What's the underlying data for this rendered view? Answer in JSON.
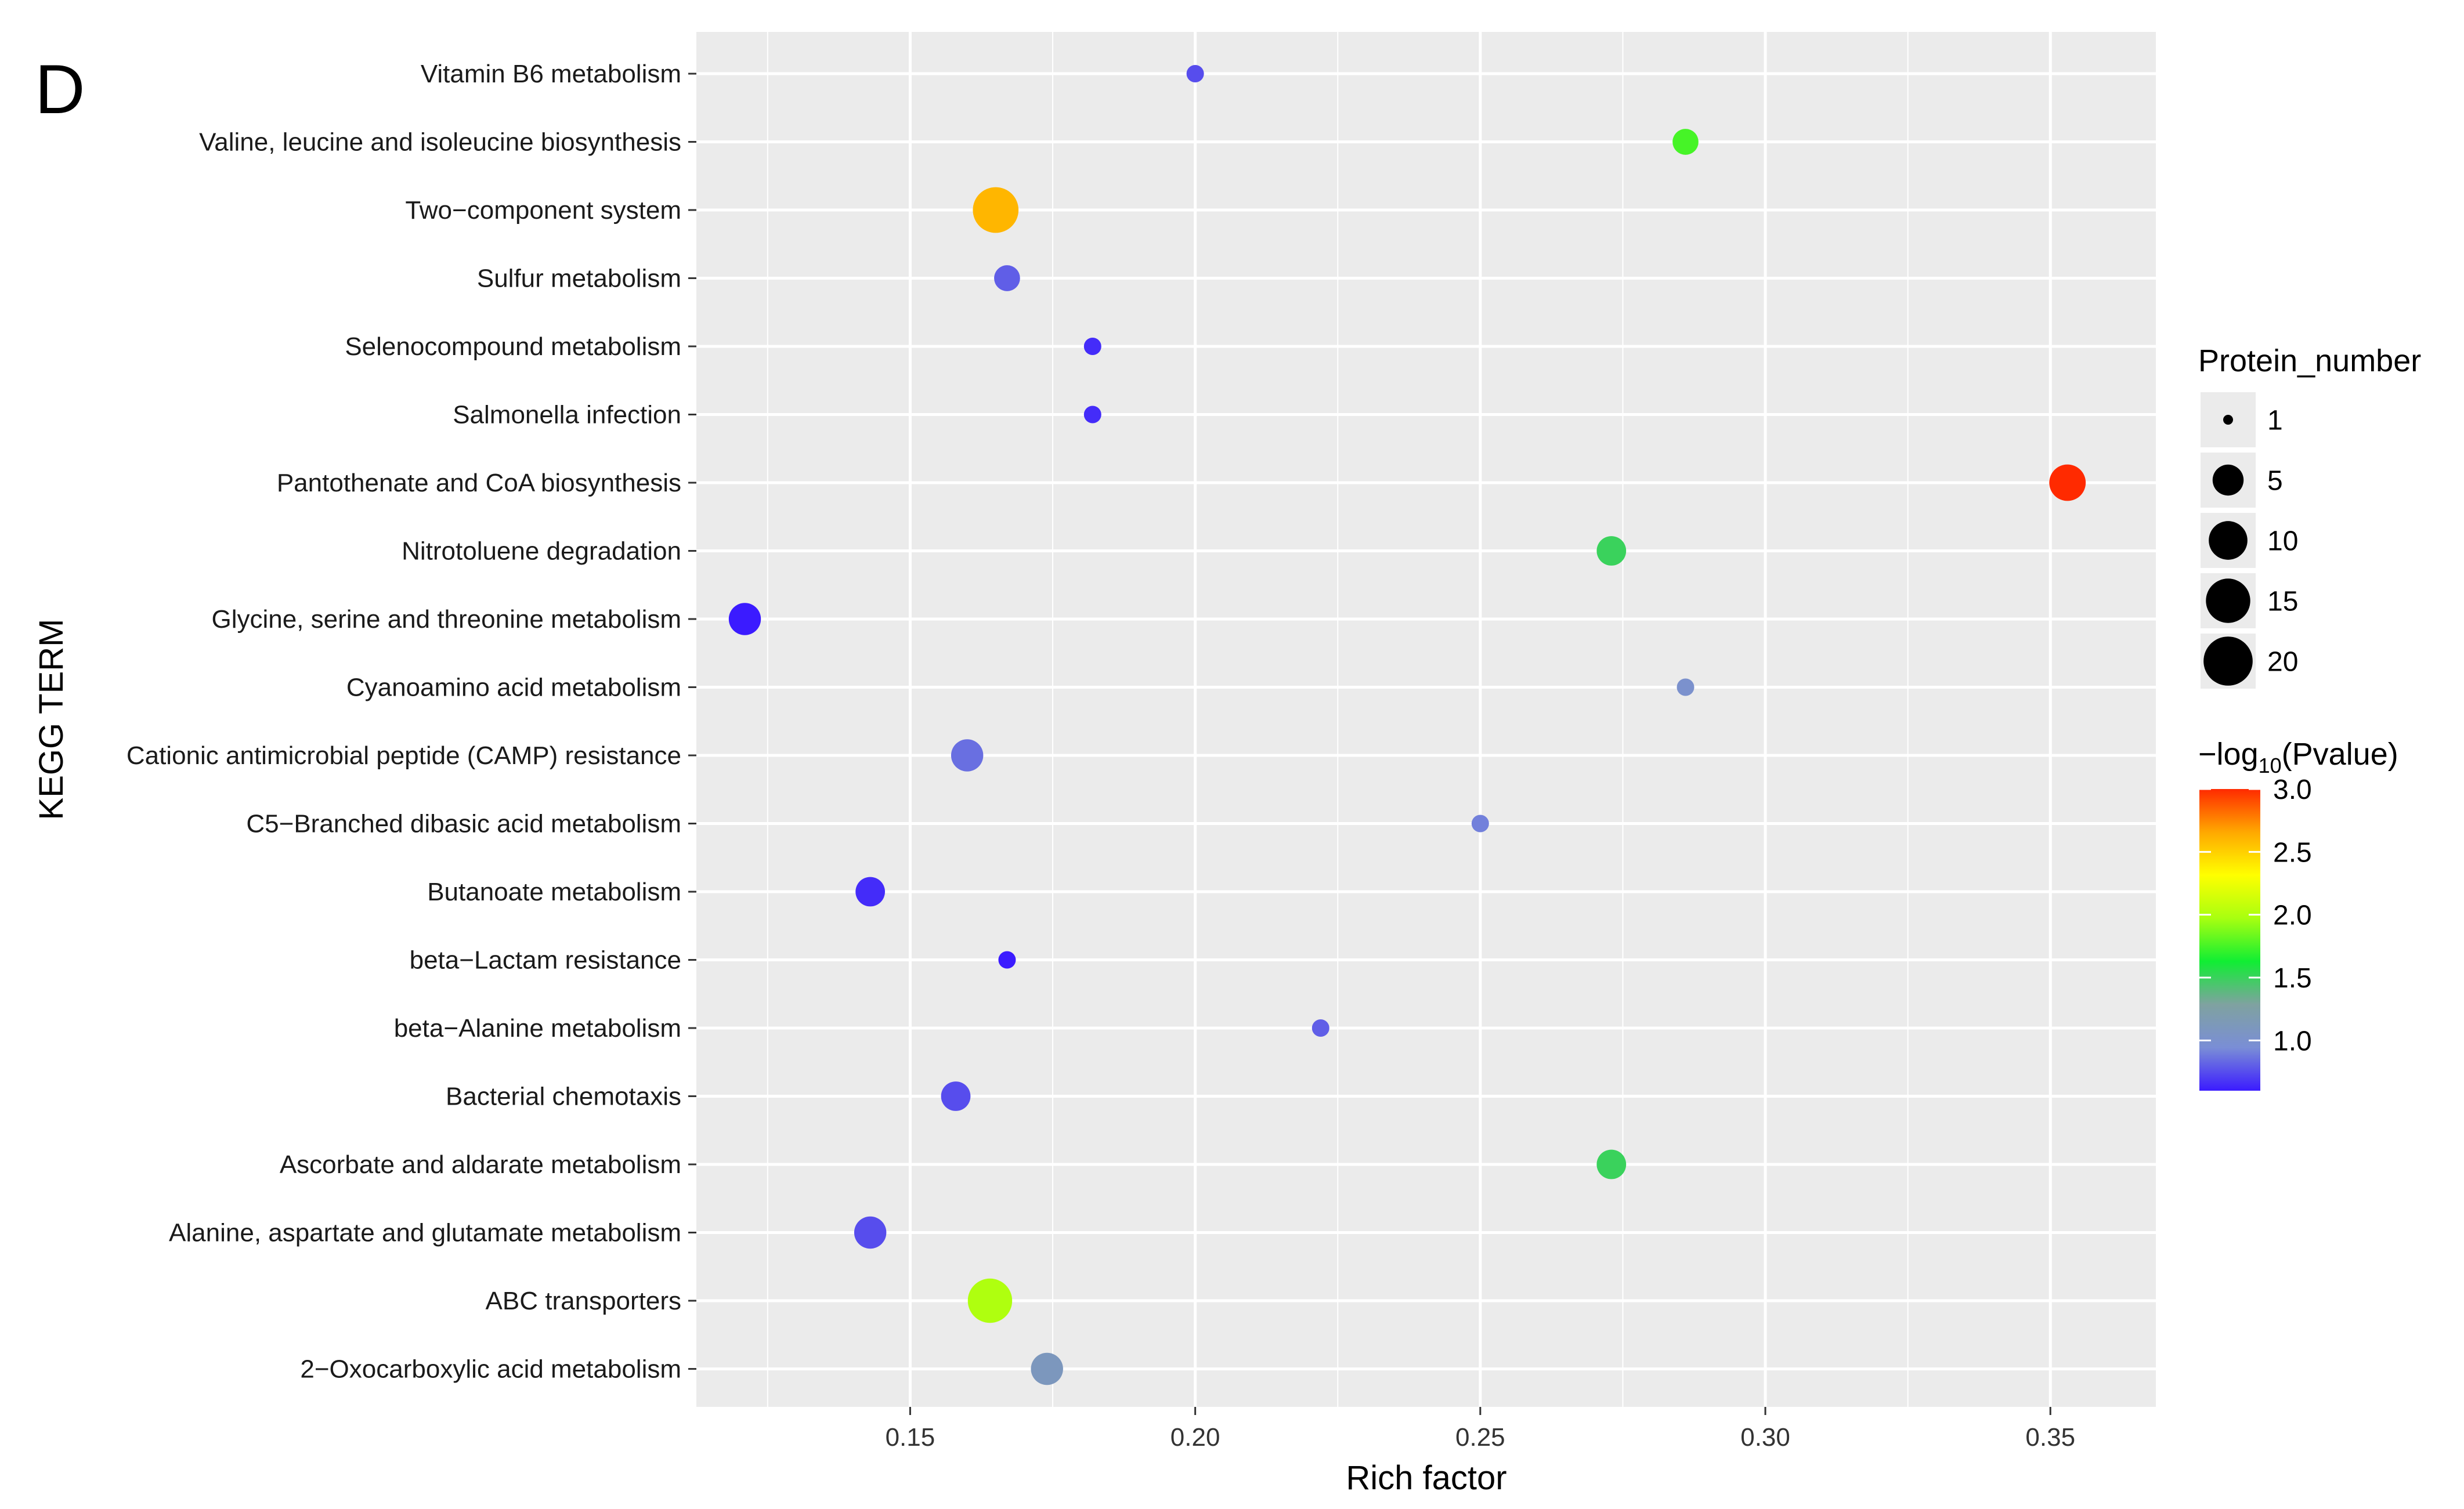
{
  "panel_label": "D",
  "colors": {
    "panel_bg": "#ebebeb",
    "grid": "#ffffff",
    "legend_key_bg": "#ebebeb",
    "gradient_stops": [
      "#3b1bff",
      "#7a8ed6",
      "#7fa2a0",
      "#10ee33",
      "#a8ff10",
      "#ffff00",
      "#ffa800",
      "#ff2a00"
    ]
  },
  "chart_data": {
    "type": "scatter",
    "subtype": "bubble",
    "xlabel": "Rich factor",
    "ylabel": "KEGG TERM",
    "xlim": [
      0.1125,
      0.3685
    ],
    "xticks": [
      0.15,
      0.2,
      0.25,
      0.3,
      0.35
    ],
    "xtick_labels": [
      "0.15",
      "0.20",
      "0.25",
      "0.30",
      "0.35"
    ],
    "grid": true,
    "size_legend": {
      "title": "Protein_number",
      "values": [
        1,
        5,
        10,
        15,
        20
      ],
      "labels": [
        "1",
        "5",
        "10",
        "15",
        "20"
      ]
    },
    "color_legend": {
      "title_prefix": "−log",
      "title_subscript": "10",
      "title_suffix": "(Pvalue)",
      "range": [
        0.6,
        3.0
      ],
      "ticks": [
        1.0,
        1.5,
        2.0,
        2.5,
        3.0
      ],
      "tick_labels": [
        "1.0",
        "1.5",
        "2.0",
        "2.5",
        "3.0"
      ]
    },
    "points": [
      {
        "term": "Vitamin B6 metabolism",
        "rich_factor": 0.2,
        "protein_number": 1,
        "neg_log10_p": 0.75
      },
      {
        "term": "Valine, leucine and isoleucine biosynthesis",
        "rich_factor": 0.286,
        "protein_number": 2,
        "neg_log10_p": 1.75
      },
      {
        "term": "Two−component system",
        "rich_factor": 0.165,
        "protein_number": 12,
        "neg_log10_p": 2.6
      },
      {
        "term": "Sulfur metabolism",
        "rich_factor": 0.167,
        "protein_number": 2,
        "neg_log10_p": 0.8
      },
      {
        "term": "Selenocompound metabolism",
        "rich_factor": 0.182,
        "protein_number": 1,
        "neg_log10_p": 0.65
      },
      {
        "term": "Salmonella infection",
        "rich_factor": 0.182,
        "protein_number": 1,
        "neg_log10_p": 0.65
      },
      {
        "term": "Pantothenate and CoA biosynthesis",
        "rich_factor": 0.353,
        "protein_number": 6,
        "neg_log10_p": 3.0
      },
      {
        "term": "Nitrotoluene degradation",
        "rich_factor": 0.273,
        "protein_number": 3,
        "neg_log10_p": 1.5
      },
      {
        "term": "Glycine, serine and threonine metabolism",
        "rich_factor": 0.121,
        "protein_number": 4,
        "neg_log10_p": 0.55
      },
      {
        "term": "Cyanoamino acid metabolism",
        "rich_factor": 0.286,
        "protein_number": 1,
        "neg_log10_p": 1.0
      },
      {
        "term": "Cationic antimicrobial peptide (CAMP) resistance",
        "rich_factor": 0.16,
        "protein_number": 4,
        "neg_log10_p": 0.85
      },
      {
        "term": "C5−Branched dibasic acid metabolism",
        "rich_factor": 0.25,
        "protein_number": 1,
        "neg_log10_p": 0.9
      },
      {
        "term": "Butanoate metabolism",
        "rich_factor": 0.143,
        "protein_number": 3,
        "neg_log10_p": 0.65
      },
      {
        "term": "beta−Lactam resistance",
        "rich_factor": 0.167,
        "protein_number": 1,
        "neg_log10_p": 0.55
      },
      {
        "term": "beta−Alanine metabolism",
        "rich_factor": 0.222,
        "protein_number": 1,
        "neg_log10_p": 0.8
      },
      {
        "term": "Bacterial chemotaxis",
        "rich_factor": 0.158,
        "protein_number": 3,
        "neg_log10_p": 0.75
      },
      {
        "term": "Ascorbate and aldarate metabolism",
        "rich_factor": 0.273,
        "protein_number": 3,
        "neg_log10_p": 1.5
      },
      {
        "term": "Alanine, aspartate and glutamate metabolism",
        "rich_factor": 0.143,
        "protein_number": 4,
        "neg_log10_p": 0.75
      },
      {
        "term": "ABC transporters",
        "rich_factor": 0.164,
        "protein_number": 11,
        "neg_log10_p": 2.0
      },
      {
        "term": "2−Oxocarboxylic acid metabolism",
        "rich_factor": 0.174,
        "protein_number": 4,
        "neg_log10_p": 1.1
      }
    ]
  }
}
